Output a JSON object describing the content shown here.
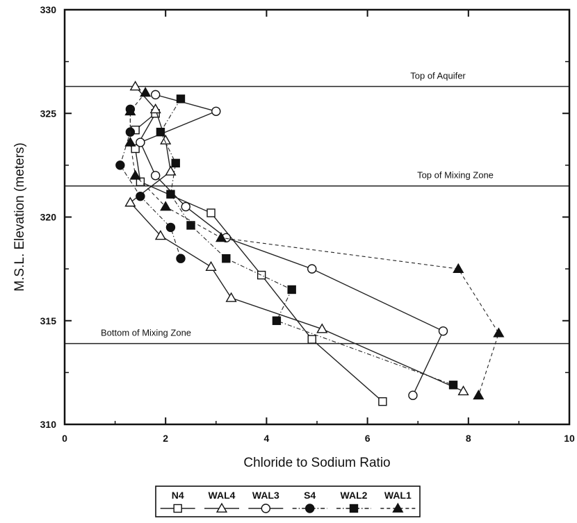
{
  "chart_data": {
    "type": "line",
    "title": "",
    "xlabel": "Chloride to Sodium Ratio",
    "ylabel": "M.S.L. Elevation (meters)",
    "xlim": [
      0,
      10
    ],
    "ylim": [
      310,
      330
    ],
    "x_ticks": [
      "0",
      "2",
      "4",
      "6",
      "8",
      "10"
    ],
    "y_ticks": [
      "310",
      "315",
      "320",
      "325",
      "330"
    ],
    "grid": false,
    "legend_position": "bottom-center",
    "reference_lines": [
      {
        "label": "Top of Aquifer",
        "y": 326.3
      },
      {
        "label": "Top of Mixing Zone",
        "y": 321.5
      },
      {
        "label": "Bottom of Mixing Zone",
        "y": 313.9
      }
    ],
    "series": [
      {
        "name": "N4",
        "marker": "square-open",
        "line": "solid",
        "points": [
          {
            "x": 1.4,
            "y": 324.2
          },
          {
            "x": 1.8,
            "y": 325.0
          },
          {
            "x": 1.4,
            "y": 323.3
          },
          {
            "x": 1.5,
            "y": 321.7
          },
          {
            "x": 2.9,
            "y": 320.2
          },
          {
            "x": 3.9,
            "y": 317.2
          },
          {
            "x": 4.9,
            "y": 314.1
          },
          {
            "x": 6.3,
            "y": 311.1
          }
        ]
      },
      {
        "name": "WAL4",
        "marker": "triangle-open",
        "line": "solid",
        "points": [
          {
            "x": 1.4,
            "y": 326.3
          },
          {
            "x": 1.8,
            "y": 325.2
          },
          {
            "x": 2.0,
            "y": 323.7
          },
          {
            "x": 2.1,
            "y": 322.2
          },
          {
            "x": 1.3,
            "y": 320.7
          },
          {
            "x": 1.9,
            "y": 319.1
          },
          {
            "x": 2.9,
            "y": 317.6
          },
          {
            "x": 3.3,
            "y": 316.1
          },
          {
            "x": 5.1,
            "y": 314.6
          },
          {
            "x": 7.9,
            "y": 311.6
          }
        ]
      },
      {
        "name": "WAL3",
        "marker": "circle-open",
        "line": "solid",
        "points": [
          {
            "x": 1.8,
            "y": 325.9
          },
          {
            "x": 3.0,
            "y": 325.1
          },
          {
            "x": 1.5,
            "y": 323.6
          },
          {
            "x": 1.8,
            "y": 322.0
          },
          {
            "x": 2.4,
            "y": 320.5
          },
          {
            "x": 3.2,
            "y": 319.0
          },
          {
            "x": 4.9,
            "y": 317.5
          },
          {
            "x": 7.5,
            "y": 314.5
          },
          {
            "x": 6.9,
            "y": 311.4
          }
        ]
      },
      {
        "name": "S4",
        "marker": "circle-filled",
        "line": "dash-dot",
        "points": [
          {
            "x": 1.3,
            "y": 325.2
          },
          {
            "x": 1.3,
            "y": 324.1
          },
          {
            "x": 1.1,
            "y": 322.5
          },
          {
            "x": 1.5,
            "y": 321.0
          },
          {
            "x": 2.1,
            "y": 319.5
          },
          {
            "x": 2.3,
            "y": 318.0
          }
        ]
      },
      {
        "name": "WAL2",
        "marker": "square-filled",
        "line": "dash-dot",
        "points": [
          {
            "x": 2.3,
            "y": 325.7
          },
          {
            "x": 1.9,
            "y": 324.1
          },
          {
            "x": 2.2,
            "y": 322.6
          },
          {
            "x": 2.1,
            "y": 321.1
          },
          {
            "x": 2.5,
            "y": 319.6
          },
          {
            "x": 3.2,
            "y": 318.0
          },
          {
            "x": 4.5,
            "y": 316.5
          },
          {
            "x": 4.2,
            "y": 315.0
          },
          {
            "x": 7.7,
            "y": 311.9
          }
        ]
      },
      {
        "name": "WAL1",
        "marker": "triangle-filled",
        "line": "dashed",
        "points": [
          {
            "x": 1.6,
            "y": 326.0
          },
          {
            "x": 1.3,
            "y": 325.1
          },
          {
            "x": 1.3,
            "y": 323.6
          },
          {
            "x": 1.4,
            "y": 322.0
          },
          {
            "x": 2.0,
            "y": 320.5
          },
          {
            "x": 3.1,
            "y": 319.0
          },
          {
            "x": 7.8,
            "y": 317.5
          },
          {
            "x": 8.6,
            "y": 314.4
          },
          {
            "x": 8.2,
            "y": 311.4
          }
        ]
      }
    ]
  }
}
